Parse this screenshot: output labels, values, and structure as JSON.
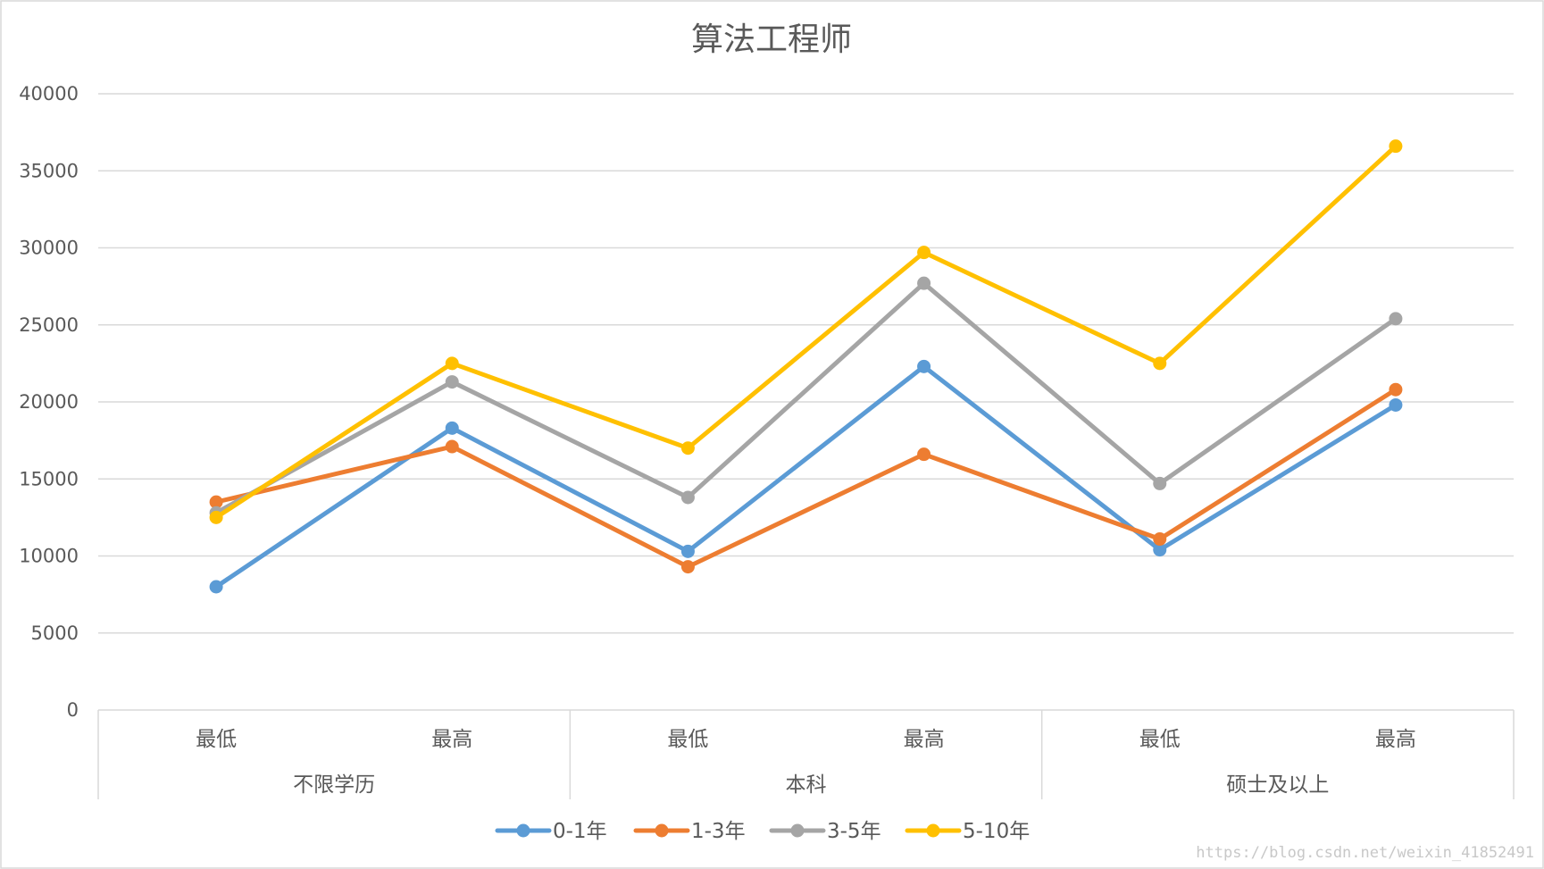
{
  "chart_data": {
    "type": "line",
    "title": "算法工程师",
    "xlabel": "",
    "ylabel": "",
    "ylim": [
      0,
      40000
    ],
    "yticks": [
      "0",
      "5000",
      "10000",
      "15000",
      "20000",
      "25000",
      "30000",
      "35000",
      "40000"
    ],
    "categories": [
      "最低",
      "最高",
      "最低",
      "最高",
      "最低",
      "最高"
    ],
    "category_groups": [
      {
        "label": "不限学历",
        "members": [
          "最低",
          "最高"
        ]
      },
      {
        "label": "本科",
        "members": [
          "最低",
          "最高"
        ]
      },
      {
        "label": "硕士及以上",
        "members": [
          "最低",
          "最高"
        ]
      }
    ],
    "grid": true,
    "legend_position": "bottom",
    "series": [
      {
        "name": "0-1年",
        "color": "#5B9BD5",
        "values": [
          8000,
          18300,
          10300,
          22300,
          10400,
          19800
        ]
      },
      {
        "name": "1-3年",
        "color": "#ED7D31",
        "values": [
          13500,
          17100,
          9300,
          16600,
          11100,
          20800
        ]
      },
      {
        "name": "3-5年",
        "color": "#A5A5A5",
        "values": [
          12800,
          21300,
          13800,
          27700,
          14700,
          25400
        ]
      },
      {
        "name": "5-10年",
        "color": "#FFC000",
        "values": [
          12500,
          22500,
          17000,
          29700,
          22500,
          36600
        ]
      }
    ]
  },
  "watermark": "https://blog.csdn.net/weixin_41852491"
}
